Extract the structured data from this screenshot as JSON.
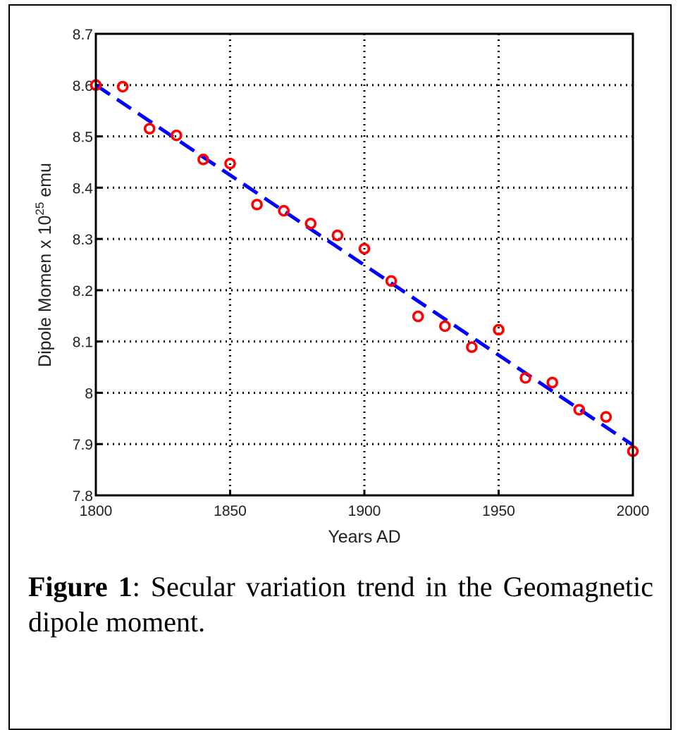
{
  "chart_data": {
    "type": "scatter",
    "xlabel": "Years AD",
    "ylabel_main": "Dipole Momen x 10",
    "ylabel_exp": "25",
    "ylabel_unit": " emu",
    "xlim": [
      1800,
      2000
    ],
    "ylim": [
      7.8,
      8.7
    ],
    "xticks": [
      "1800",
      "1850",
      "1900",
      "1950",
      "2000"
    ],
    "yticks": [
      "7.8",
      "7.9",
      "8",
      "8.1",
      "8.2",
      "8.3",
      "8.4",
      "8.5",
      "8.6",
      "8.7"
    ],
    "grid": true,
    "grid_style": "dotted",
    "series": [
      {
        "style": "red open circles",
        "color": "#ff0000",
        "x": [
          1800,
          1810,
          1820,
          1830,
          1840,
          1850,
          1860,
          1870,
          1880,
          1890,
          1900,
          1910,
          1920,
          1930,
          1940,
          1950,
          1960,
          1970,
          1980,
          1990,
          2000
        ],
        "y": [
          8.6,
          8.597,
          8.515,
          8.502,
          8.455,
          8.447,
          8.367,
          8.355,
          8.33,
          8.307,
          8.281,
          8.218,
          8.149,
          8.13,
          8.089,
          8.123,
          8.029,
          8.02,
          7.967,
          7.953,
          7.886
        ]
      },
      {
        "style": "blue dashed trend line",
        "color": "#0000ff",
        "x": [
          1800,
          2000
        ],
        "y": [
          8.6,
          7.898
        ]
      }
    ]
  },
  "caption": {
    "label": "Figure 1",
    "text": ": Secular variation trend in the Geomagnetic dipole moment."
  }
}
